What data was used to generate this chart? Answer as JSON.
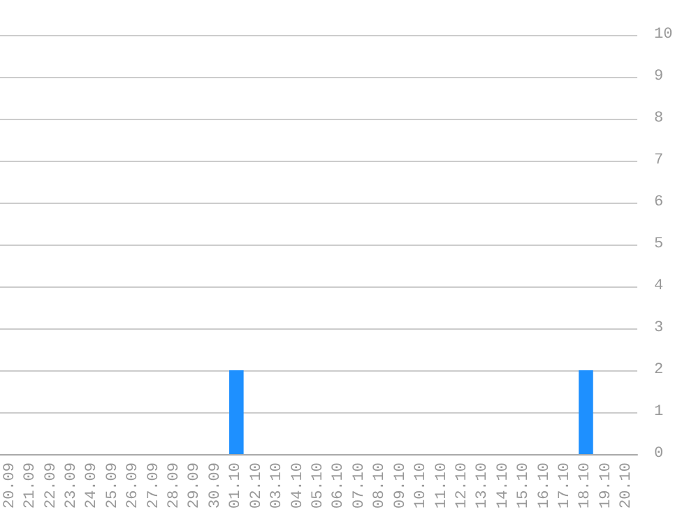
{
  "chart_data": {
    "type": "bar",
    "categories": [
      "20.09",
      "21.09",
      "22.09",
      "23.09",
      "24.09",
      "25.09",
      "26.09",
      "27.09",
      "28.09",
      "29.09",
      "30.09",
      "01.10",
      "02.10",
      "03.10",
      "04.10",
      "05.10",
      "06.10",
      "07.10",
      "08.10",
      "09.10",
      "10.10",
      "11.10",
      "12.10",
      "13.10",
      "14.10",
      "15.10",
      "16.10",
      "17.10",
      "18.10",
      "19.10",
      "20.10"
    ],
    "values": [
      0,
      0,
      0,
      0,
      0,
      0,
      0,
      0,
      0,
      0,
      0,
      2,
      0,
      0,
      0,
      0,
      0,
      0,
      0,
      0,
      0,
      0,
      0,
      0,
      0,
      0,
      0,
      0,
      2,
      0,
      0
    ],
    "color": "#1e90ff",
    "ylim": [
      0,
      10
    ],
    "yticks": [
      0,
      1,
      2,
      3,
      4,
      5,
      6,
      7,
      8,
      9,
      10
    ],
    "grid": true
  }
}
